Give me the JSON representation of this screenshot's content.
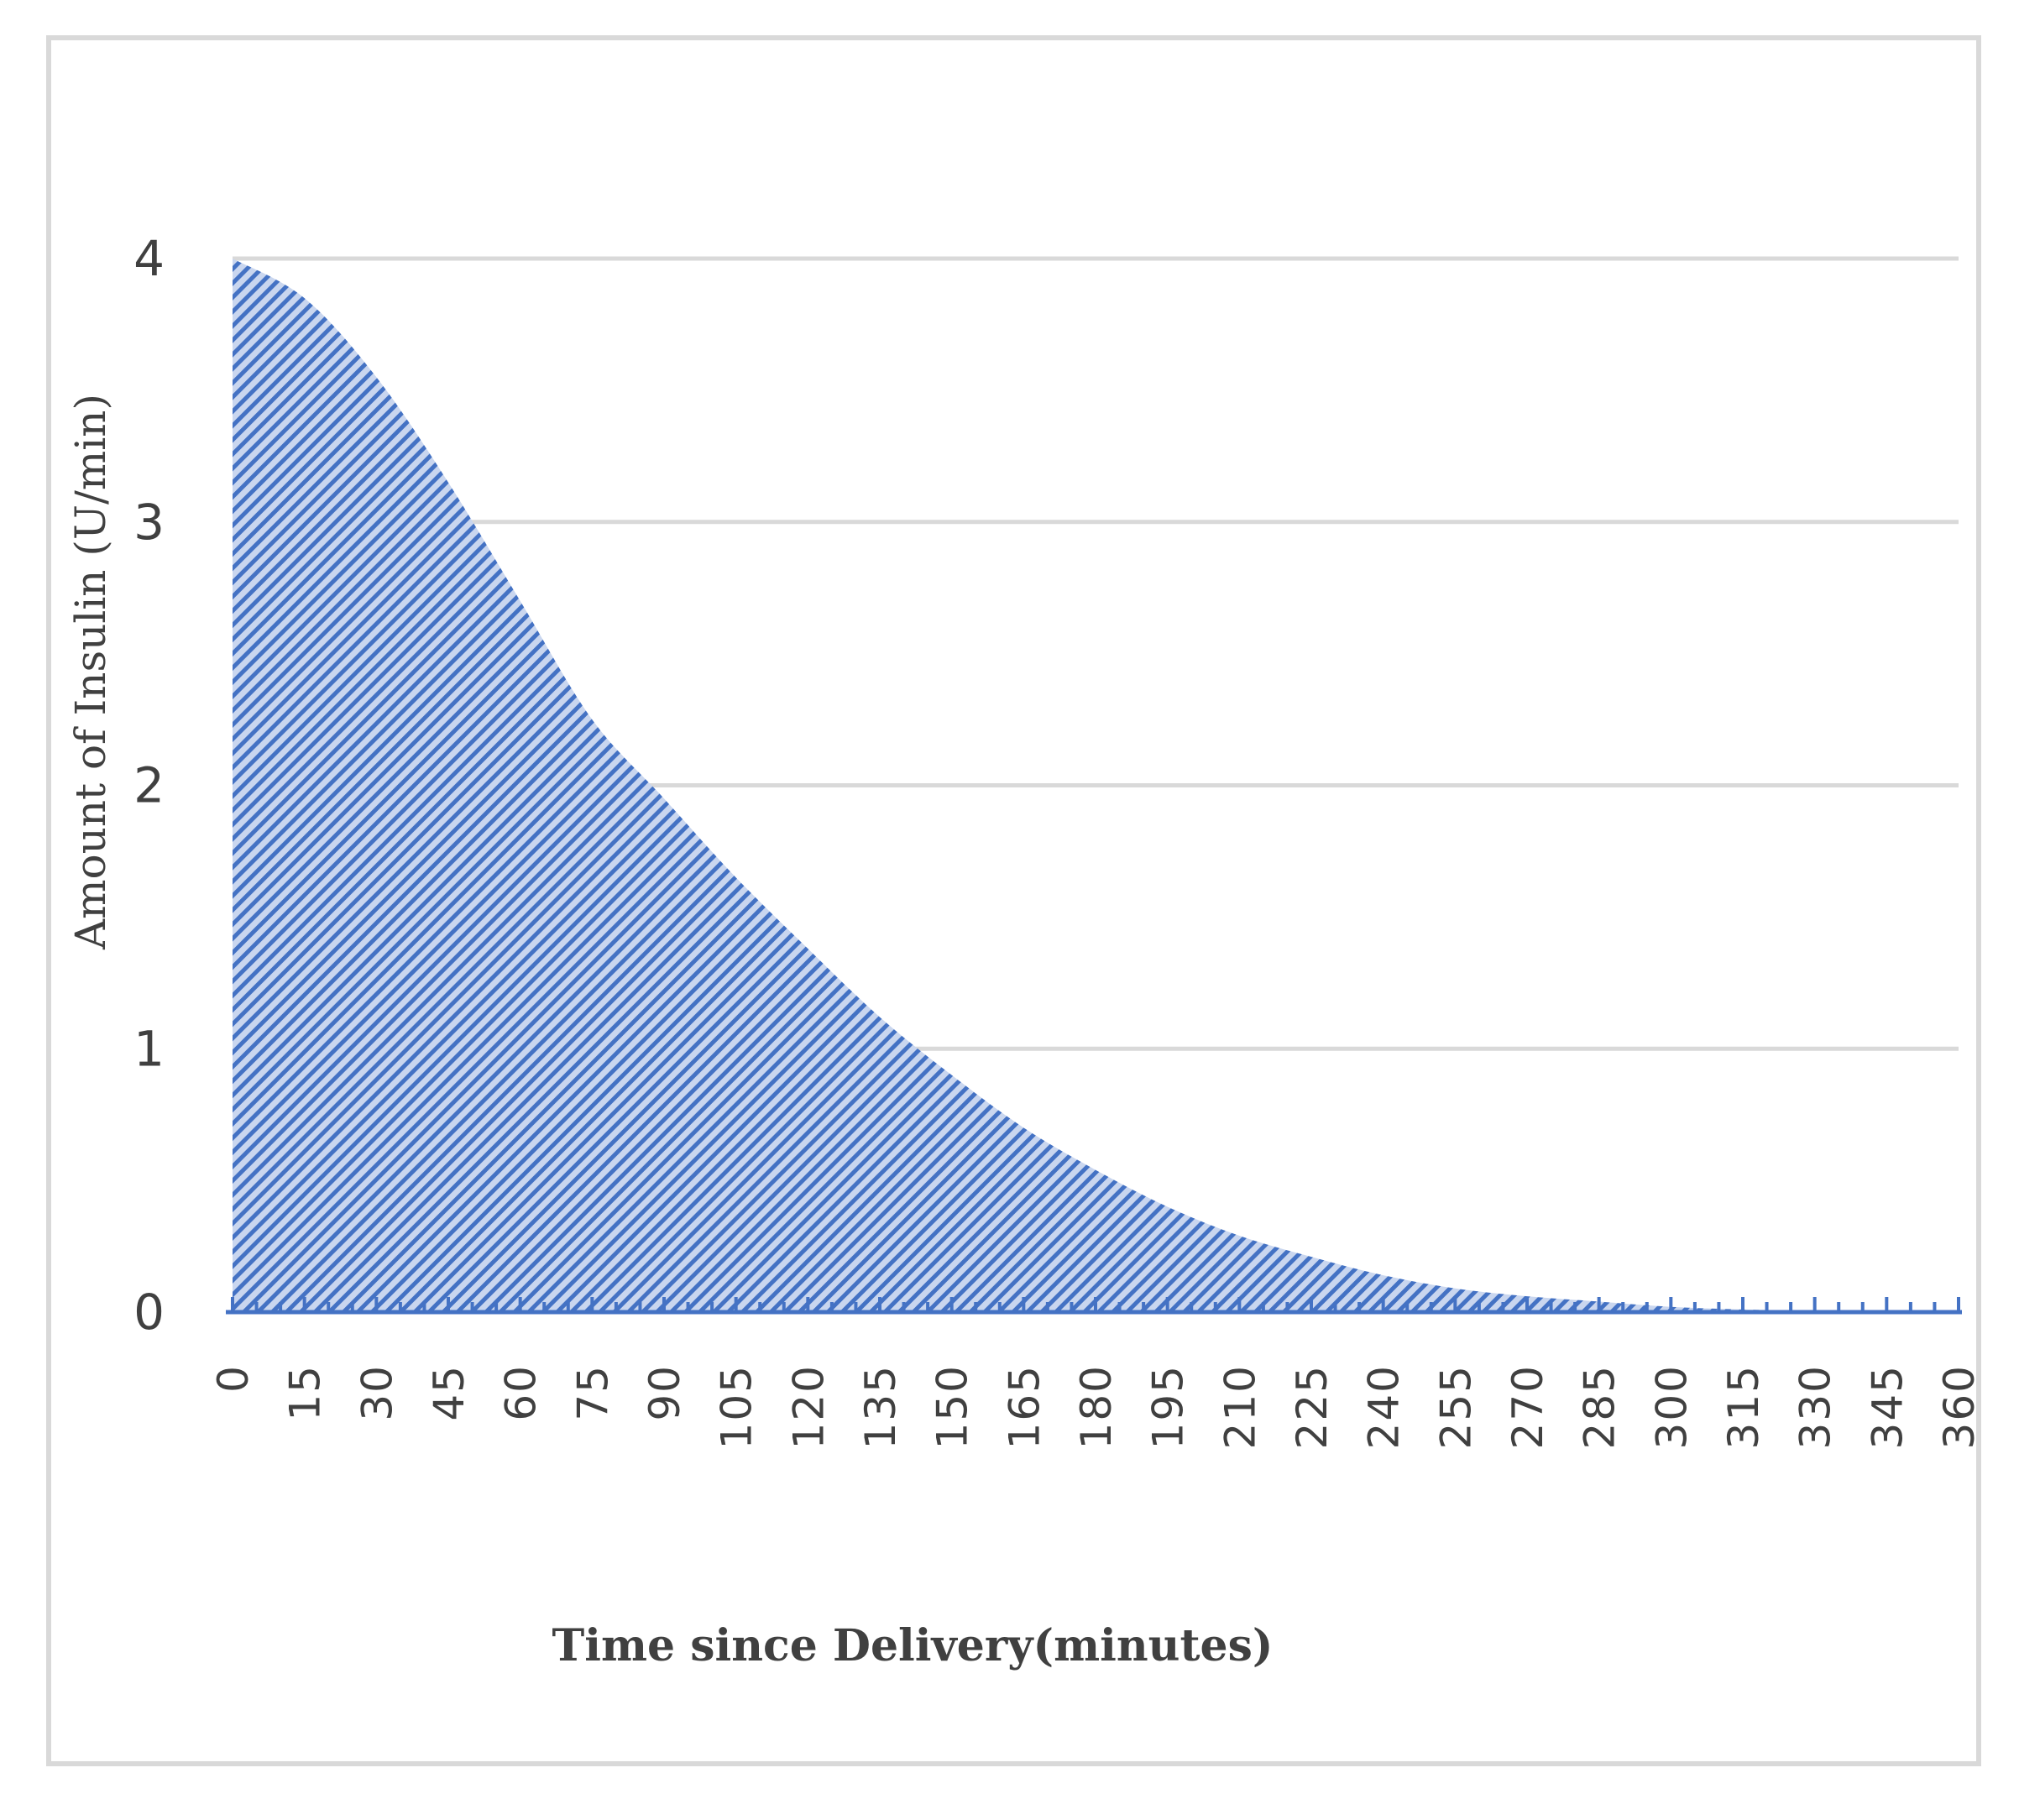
{
  "chart_data": {
    "type": "area",
    "xlabel": "Time since Delivery(minutes)",
    "ylabel": "Amount of Insulin (U/min)",
    "x_tick_labels": [
      "0",
      "15",
      "30",
      "45",
      "60",
      "75",
      "90",
      "105",
      "120",
      "135",
      "150",
      "165",
      "180",
      "195",
      "210",
      "225",
      "240",
      "255",
      "270",
      "285",
      "300",
      "315",
      "330",
      "345",
      "360"
    ],
    "y_tick_labels": [
      "0",
      "1",
      "2",
      "3",
      "4"
    ],
    "xlim": [
      0,
      360
    ],
    "ylim": [
      0,
      4
    ],
    "grid": true,
    "legend": "none",
    "series": [
      {
        "x": [
          0,
          15,
          30,
          45,
          60,
          75,
          90,
          105,
          120,
          135,
          150,
          165,
          180,
          195,
          210,
          225,
          240,
          255,
          270,
          285,
          300,
          315,
          330,
          345,
          360
        ],
        "values": [
          4.0,
          3.85,
          3.55,
          3.15,
          2.7,
          2.25,
          1.95,
          1.65,
          1.38,
          1.12,
          0.9,
          0.7,
          0.54,
          0.4,
          0.29,
          0.21,
          0.14,
          0.09,
          0.06,
          0.04,
          0.02,
          0.01,
          0.005,
          0.002,
          0.0
        ]
      }
    ],
    "colors": {
      "fill": "#4472c4",
      "fill_light": "#c9d6ef",
      "axis": "#4472c4",
      "grid": "#d9d9d9",
      "text": "#404040"
    }
  }
}
